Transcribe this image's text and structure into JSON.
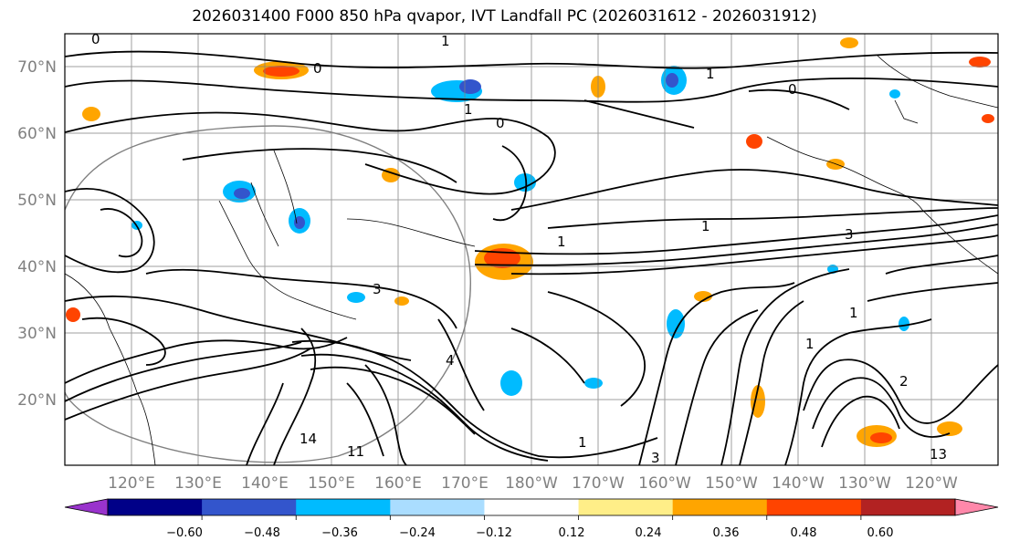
{
  "title": "2026031400 F000 850 hPa qvapor, IVT Landfall PC (2026031612 - 2026031912)",
  "map": {
    "lat_labels": [
      "70°N",
      "60°N",
      "50°N",
      "40°N",
      "30°N",
      "20°N"
    ],
    "lon_labels": [
      "120°E",
      "130°E",
      "140°E",
      "150°E",
      "160°E",
      "170°E",
      "180°W",
      "170°W",
      "160°W",
      "150°W",
      "140°W",
      "130°W",
      "120°W"
    ],
    "contour_labels": [
      "0",
      "1",
      "0",
      "1",
      "1",
      "0",
      "1",
      "0",
      "3",
      "1",
      "4",
      "1",
      "3",
      "14",
      "11",
      "3",
      "13",
      "2",
      "1",
      "1"
    ]
  },
  "colorbar": {
    "colors": [
      "#9933cc",
      "#000088",
      "#3355cc",
      "#00bbff",
      "#aaddff",
      "#ffffff",
      "#ffee88",
      "#ffa500",
      "#ff4400",
      "#b22222",
      "#ff88aa"
    ],
    "tick_labels": [
      "−0.60",
      "−0.48",
      "−0.36",
      "−0.24",
      "−0.12",
      "0.12",
      "0.24",
      "0.36",
      "0.48",
      "0.60"
    ]
  }
}
